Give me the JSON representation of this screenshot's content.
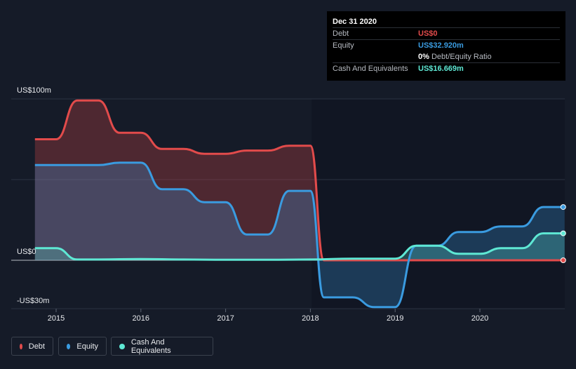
{
  "tooltip": {
    "date": "Dec 31 2020",
    "rows": [
      {
        "label": "Debt",
        "value": "US$0",
        "color": "#e24b4b"
      },
      {
        "label": "Equity",
        "value": "US$32.920m",
        "color": "#3a9be0"
      },
      {
        "label": "",
        "value": "0%",
        "suffix": "Debt/Equity Ratio",
        "color": "#ffffff"
      },
      {
        "label": "Cash And Equivalents",
        "value": "US$16.669m",
        "color": "#5ee8d4"
      }
    ]
  },
  "legend": [
    {
      "name": "Debt",
      "color": "#e24b4b"
    },
    {
      "name": "Equity",
      "color": "#3a9be0"
    },
    {
      "name": "Cash And Equivalents",
      "color": "#5ee8d4"
    }
  ],
  "chart_data": {
    "type": "area",
    "yticks": [
      {
        "value": 100,
        "label": "US$100m"
      },
      {
        "value": 0,
        "label": "US$0"
      },
      {
        "value": -30,
        "label": "-US$30m"
      }
    ],
    "xticks": [
      "2015",
      "2016",
      "2017",
      "2018",
      "2019",
      "2020"
    ],
    "ylim": [
      -30,
      100
    ],
    "xlim": [
      2014.5,
      2021
    ],
    "grid": true,
    "series": [
      {
        "name": "Debt",
        "color": "#e24b4b",
        "points": [
          [
            2014.75,
            75
          ],
          [
            2015.0,
            75
          ],
          [
            2015.25,
            99
          ],
          [
            2015.5,
            99
          ],
          [
            2015.75,
            79
          ],
          [
            2016.0,
            79
          ],
          [
            2016.25,
            69
          ],
          [
            2016.5,
            69
          ],
          [
            2016.75,
            66
          ],
          [
            2017.0,
            66
          ],
          [
            2017.25,
            68
          ],
          [
            2017.5,
            68
          ],
          [
            2017.75,
            71
          ],
          [
            2018.0,
            71
          ],
          [
            2018.16,
            0
          ],
          [
            2018.5,
            0
          ],
          [
            2019.0,
            0
          ],
          [
            2019.5,
            0
          ],
          [
            2020.0,
            0
          ],
          [
            2020.5,
            0
          ],
          [
            2021.0,
            0
          ]
        ]
      },
      {
        "name": "Equity",
        "color": "#3a9be0",
        "points": [
          [
            2014.75,
            59
          ],
          [
            2015.0,
            59
          ],
          [
            2015.5,
            59
          ],
          [
            2015.75,
            60.5
          ],
          [
            2016.0,
            60.5
          ],
          [
            2016.25,
            44
          ],
          [
            2016.5,
            44
          ],
          [
            2016.75,
            36
          ],
          [
            2017.0,
            36
          ],
          [
            2017.25,
            16
          ],
          [
            2017.5,
            16
          ],
          [
            2017.75,
            43
          ],
          [
            2018.0,
            43
          ],
          [
            2018.16,
            -23
          ],
          [
            2018.5,
            -23
          ],
          [
            2018.75,
            -29
          ],
          [
            2019.0,
            -29
          ],
          [
            2019.25,
            9
          ],
          [
            2019.5,
            9
          ],
          [
            2019.75,
            17.5
          ],
          [
            2020.0,
            17.5
          ],
          [
            2020.25,
            21
          ],
          [
            2020.5,
            21
          ],
          [
            2020.75,
            33
          ],
          [
            2021.0,
            33
          ]
        ]
      },
      {
        "name": "Cash And Equivalents",
        "color": "#5ee8d4",
        "points": [
          [
            2014.75,
            7.5
          ],
          [
            2015.0,
            7.5
          ],
          [
            2015.25,
            0.5
          ],
          [
            2015.5,
            0.5
          ],
          [
            2016.0,
            0.8
          ],
          [
            2016.5,
            0.5
          ],
          [
            2017.0,
            0.3
          ],
          [
            2017.5,
            0.3
          ],
          [
            2018.0,
            0.5
          ],
          [
            2018.5,
            1
          ],
          [
            2019.0,
            1
          ],
          [
            2019.25,
            9
          ],
          [
            2019.5,
            9
          ],
          [
            2019.75,
            4
          ],
          [
            2020.0,
            4
          ],
          [
            2020.25,
            7.5
          ],
          [
            2020.5,
            7.5
          ],
          [
            2020.75,
            16.7
          ],
          [
            2021.0,
            16.7
          ]
        ]
      }
    ]
  }
}
